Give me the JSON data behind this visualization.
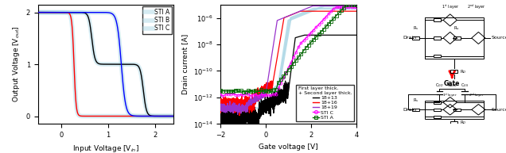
{
  "left_plot": {
    "xlabel": "Input Voltage [V$_{in}$]",
    "ylabel": "Output Voltage [V$_{out}$]",
    "xlim": [
      -0.5,
      2.4
    ],
    "ylim": [
      -0.15,
      2.15
    ],
    "xticks": [
      0,
      1,
      2
    ],
    "yticks": [
      0,
      1,
      2
    ],
    "legend": [
      "STI A",
      "STI B",
      "STI C"
    ],
    "colors": [
      "black",
      "red",
      "blue"
    ]
  },
  "right_plot": {
    "xlabel": "Gate voltage [V]",
    "ylabel": "Drain current [A]",
    "xlim": [
      -2,
      4
    ],
    "xticks": [
      -2,
      0,
      2,
      4
    ],
    "legend": [
      "18+13",
      "18+16",
      "18+19",
      "STI C",
      "STI A"
    ],
    "annotation": "First layer thick.\n+ Second layer thick."
  },
  "background_color": "#ffffff"
}
